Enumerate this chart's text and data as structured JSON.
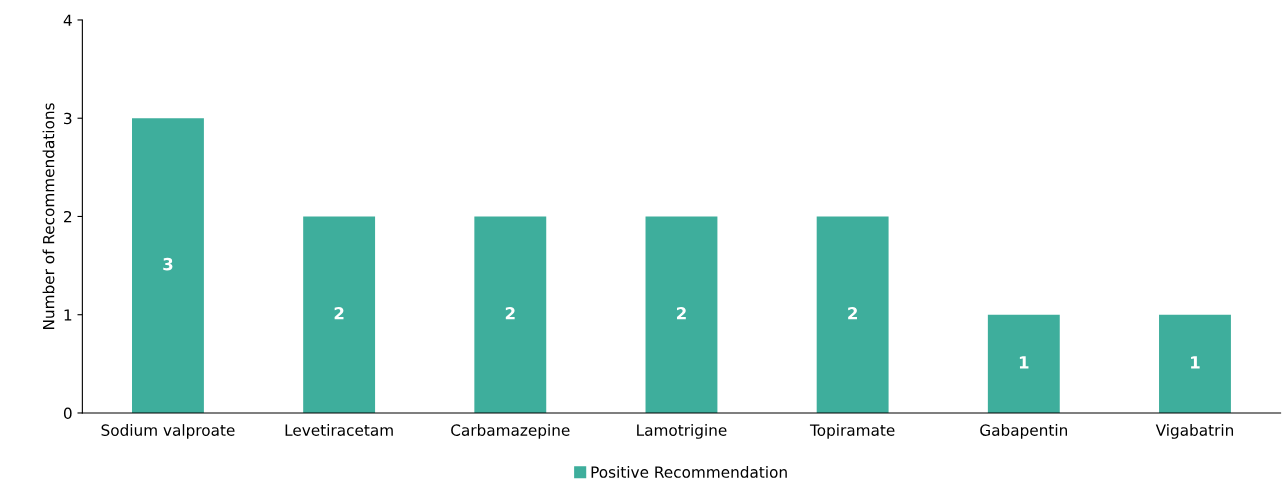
{
  "chart_data": {
    "type": "bar",
    "ylabel": "Number of Recommendations",
    "categories": [
      "Sodium valproate",
      "Levetiracetam",
      "Carbamazepine",
      "Lamotrigine",
      "Topiramate",
      "Gabapentin",
      "Vigabatrin"
    ],
    "series": [
      {
        "name": "Positive Recommendation",
        "color": "#3eae9c",
        "values": [
          3,
          2,
          2,
          2,
          2,
          1,
          1
        ]
      }
    ],
    "ylim": [
      0,
      4
    ],
    "yticks": [
      0,
      1,
      2,
      3,
      4
    ],
    "data_labels": true,
    "legend": "bottom",
    "grid": false
  }
}
